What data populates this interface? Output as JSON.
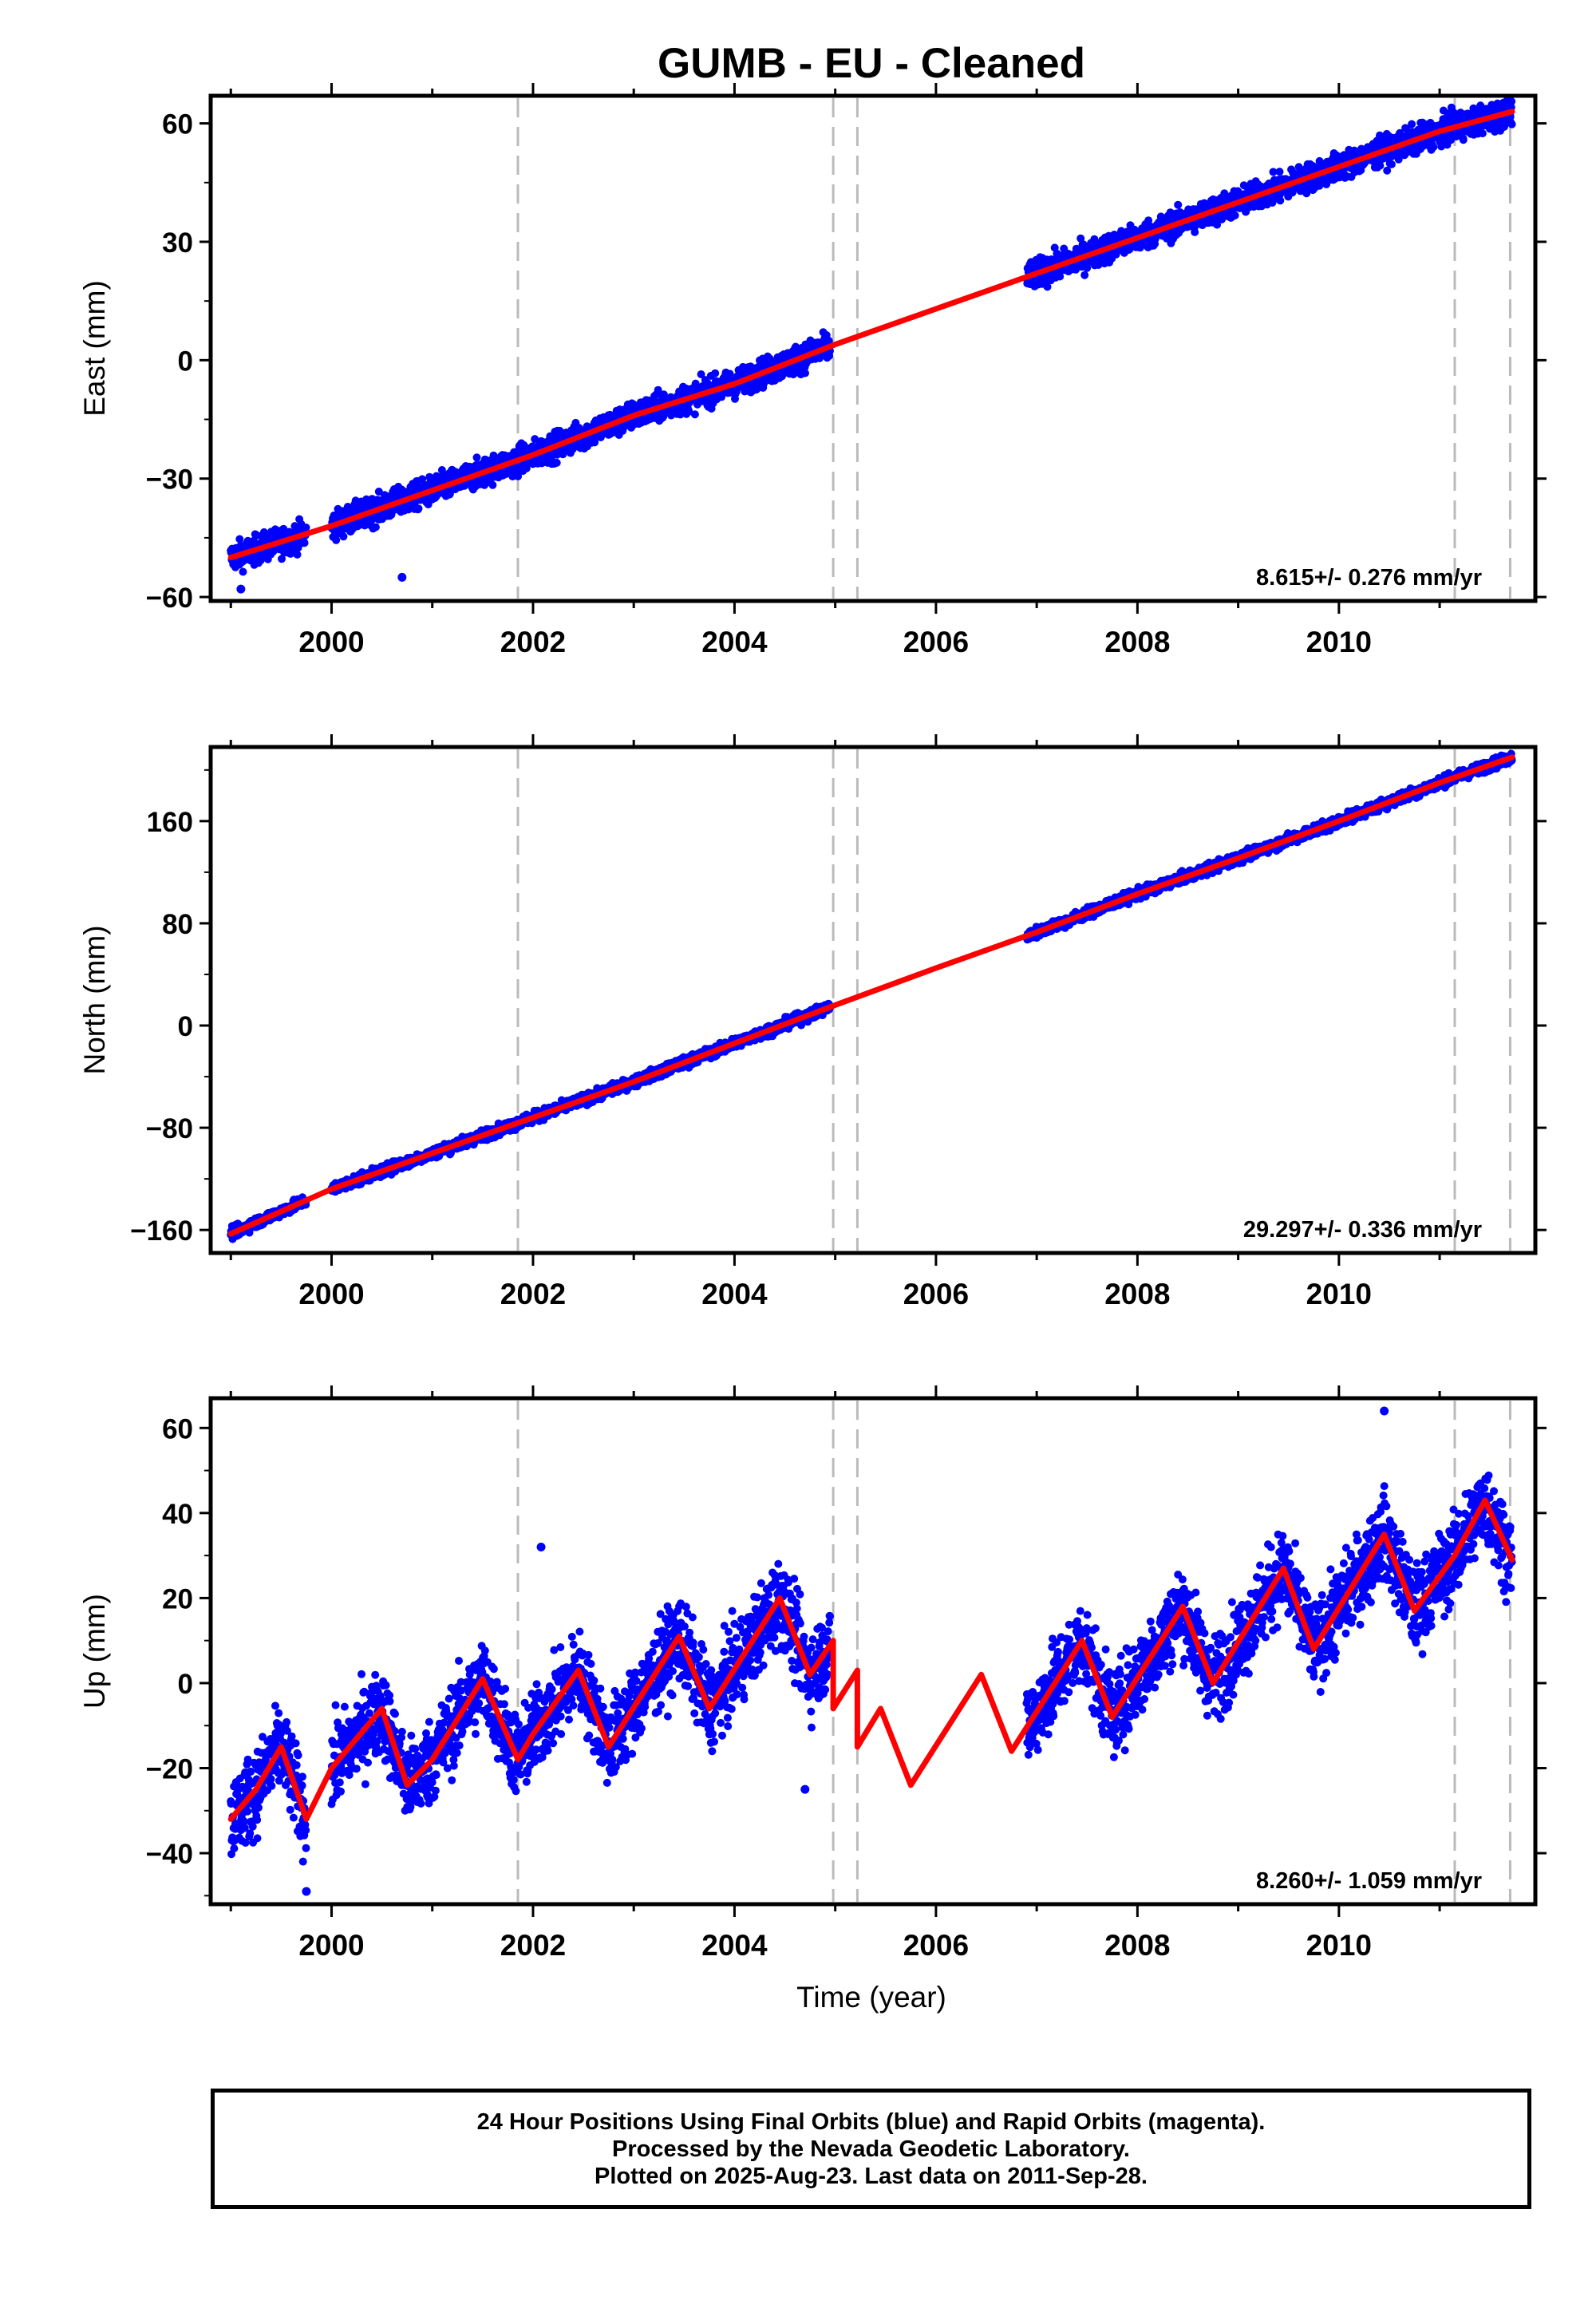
{
  "title": "GUMB  - EU - Cleaned",
  "xlabel": "Time (year)",
  "caption": {
    "line1": "24 Hour Positions Using Final Orbits (blue) and Rapid Orbits (magenta).",
    "line2": "Processed by the Nevada Geodetic Laboratory.",
    "line3": "Plotted on 2025-Aug-23. Last data on 2011-Sep-28."
  },
  "colors": {
    "observations": "#0000ff",
    "model": "#ff0000",
    "steps": "#bbbbbb",
    "frame": "#000000"
  },
  "chart_data": [
    {
      "type": "scatter",
      "component": "East",
      "ylabel": "East (mm)",
      "rate_text": "8.615+/- 0.276 mm/yr",
      "xlim": [
        1998.8,
        2011.95
      ],
      "ylim": [
        -61,
        67
      ],
      "xticks": [
        2000,
        2002,
        2004,
        2006,
        2008,
        2010
      ],
      "yticks": [
        -60,
        -30,
        0,
        30,
        60
      ],
      "ytick_labels": [
        "−60",
        "−30",
        "0",
        "30",
        "60"
      ],
      "step_lines": [
        2001.85,
        2004.98,
        2005.22,
        2011.15,
        2011.7
      ],
      "data_segments": [
        [
          1999.0,
          1999.75
        ],
        [
          2000.0,
          2004.95
        ],
        [
          2006.9,
          2011.72
        ]
      ],
      "model_points": [
        [
          1999.0,
          -50
        ],
        [
          1999.5,
          -46
        ],
        [
          2000.0,
          -42
        ],
        [
          2001.0,
          -33
        ],
        [
          2002.0,
          -24
        ],
        [
          2003.0,
          -14
        ],
        [
          2004.0,
          -6
        ],
        [
          2005.0,
          4
        ],
        [
          2006.0,
          13
        ],
        [
          2007.0,
          22
        ],
        [
          2008.0,
          31
        ],
        [
          2009.0,
          40
        ],
        [
          2010.0,
          49
        ],
        [
          2011.0,
          58
        ],
        [
          2011.72,
          63
        ]
      ],
      "scatter_spread": 2.5,
      "outliers": [
        [
          2000.7,
          -55
        ],
        [
          1999.1,
          -58
        ]
      ]
    },
    {
      "type": "scatter",
      "component": "North",
      "ylabel": "North (mm)",
      "rate_text": "29.297+/- 0.336 mm/yr",
      "xlim": [
        1998.8,
        2011.95
      ],
      "ylim": [
        -178,
        218
      ],
      "xticks": [
        2000,
        2002,
        2004,
        2006,
        2008,
        2010
      ],
      "yticks": [
        -160,
        -80,
        0,
        80,
        160
      ],
      "ytick_labels": [
        "−160",
        "−80",
        "0",
        "80",
        "160"
      ],
      "step_lines": [
        2001.85,
        2004.98,
        2005.22,
        2011.15,
        2011.7
      ],
      "data_segments": [
        [
          1999.0,
          1999.75
        ],
        [
          2000.0,
          2004.95
        ],
        [
          2006.9,
          2011.72
        ]
      ],
      "model_points": [
        [
          1999.0,
          -163
        ],
        [
          2000.0,
          -128
        ],
        [
          2001.0,
          -100
        ],
        [
          2002.0,
          -72
        ],
        [
          2003.0,
          -44
        ],
        [
          2004.0,
          -14
        ],
        [
          2005.0,
          16
        ],
        [
          2006.0,
          45
        ],
        [
          2007.0,
          73
        ],
        [
          2008.0,
          103
        ],
        [
          2009.0,
          131
        ],
        [
          2010.0,
          160
        ],
        [
          2011.0,
          190
        ],
        [
          2011.72,
          210
        ]
      ],
      "scatter_spread": 3,
      "outliers": []
    },
    {
      "type": "scatter",
      "component": "Up",
      "ylabel": "Up (mm)",
      "rate_text": "8.260+/- 1.059 mm/yr",
      "xlim": [
        1998.8,
        2011.95
      ],
      "ylim": [
        -52,
        67
      ],
      "xticks": [
        2000,
        2002,
        2004,
        2006,
        2008,
        2010
      ],
      "yticks": [
        -40,
        -20,
        0,
        20,
        40,
        60
      ],
      "ytick_labels": [
        "−40",
        "−20",
        "0",
        "20",
        "40",
        "60"
      ],
      "step_lines": [
        2001.85,
        2004.98,
        2005.22,
        2011.15,
        2011.7
      ],
      "data_segments": [
        [
          1999.0,
          1999.75
        ],
        [
          2000.0,
          2004.95
        ],
        [
          2006.9,
          2011.72
        ]
      ],
      "model_points": [
        [
          1999.0,
          -32
        ],
        [
          1999.25,
          -25
        ],
        [
          1999.5,
          -15
        ],
        [
          1999.75,
          -32
        ],
        [
          2000.0,
          -20
        ],
        [
          2000.5,
          -6
        ],
        [
          2000.75,
          -24
        ],
        [
          2001.0,
          -18
        ],
        [
          2001.5,
          1
        ],
        [
          2001.85,
          -18
        ],
        [
          2002.0,
          -12
        ],
        [
          2002.45,
          3
        ],
        [
          2002.75,
          -15
        ],
        [
          2003.45,
          11
        ],
        [
          2003.75,
          -6
        ],
        [
          2004.45,
          20
        ],
        [
          2004.75,
          2
        ],
        [
          2004.98,
          10
        ],
        [
          2004.98,
          -6
        ],
        [
          2005.22,
          3
        ],
        [
          2005.22,
          -15
        ],
        [
          2005.45,
          -6
        ],
        [
          2005.75,
          -24
        ],
        [
          2006.45,
          2
        ],
        [
          2006.75,
          -16
        ],
        [
          2007.45,
          10
        ],
        [
          2007.75,
          -8
        ],
        [
          2008.45,
          18
        ],
        [
          2008.75,
          0
        ],
        [
          2009.45,
          27
        ],
        [
          2009.75,
          8
        ],
        [
          2010.45,
          35
        ],
        [
          2010.75,
          17
        ],
        [
          2011.15,
          30
        ],
        [
          2011.45,
          43
        ],
        [
          2011.72,
          29
        ]
      ],
      "scatter_spread": 7,
      "outliers": [
        [
          2002.08,
          32
        ],
        [
          2010.45,
          64
        ],
        [
          2004.7,
          -25
        ],
        [
          1999.75,
          -49
        ]
      ]
    }
  ]
}
